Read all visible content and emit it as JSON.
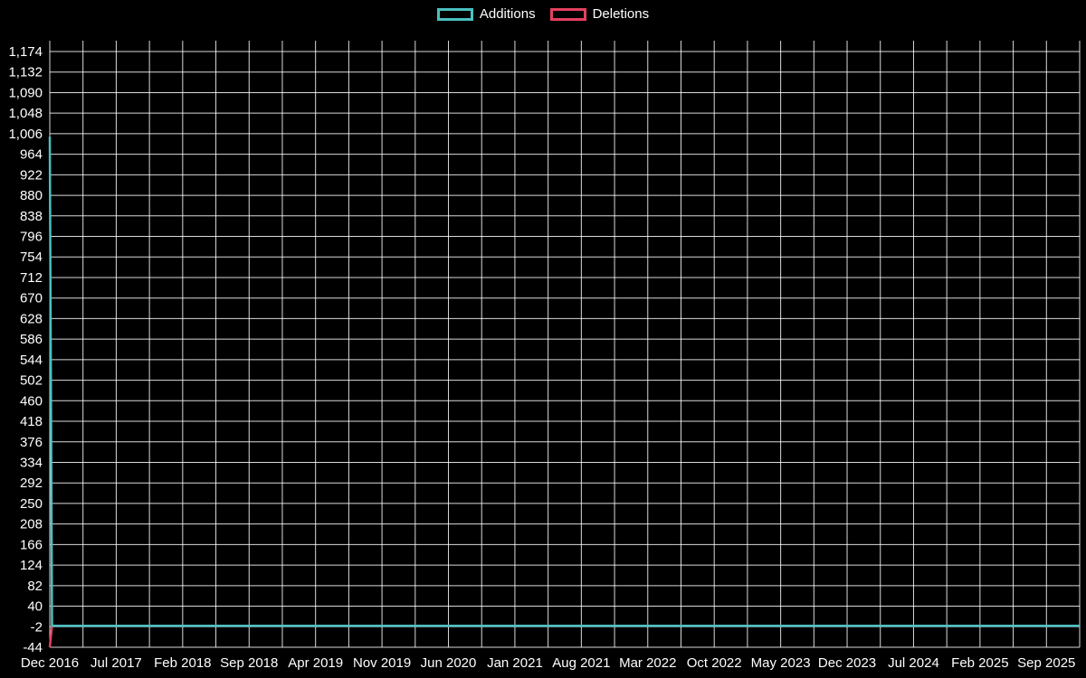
{
  "page": {
    "background": "#000000",
    "text_color": "#ffffff"
  },
  "legend": {
    "position": "top-center",
    "items": [
      {
        "label": "Additions",
        "color": "#4bc0c0"
      },
      {
        "label": "Deletions",
        "color": "#e5405f"
      }
    ]
  },
  "chart_data": {
    "type": "line",
    "title": "",
    "xlabel": "",
    "ylabel": "",
    "grid": true,
    "legend_position": "top",
    "x_tick_labels": [
      "Dec 2016",
      "Jul 2017",
      "Feb 2018",
      "Sep 2018",
      "Apr 2019",
      "Nov 2019",
      "Jun 2020",
      "Jan 2021",
      "Aug 2021",
      "Mar 2022",
      "Oct 2022",
      "May 2023",
      "Dec 2023",
      "Jul 2024",
      "Feb 2025",
      "Sep 2025"
    ],
    "y_tick_labels": [
      "1,174",
      "1,132",
      "1,090",
      "1,048",
      "1,006",
      "964",
      "922",
      "880",
      "838",
      "796",
      "754",
      "712",
      "670",
      "628",
      "586",
      "544",
      "502",
      "460",
      "418",
      "376",
      "334",
      "292",
      "250",
      "208",
      "166",
      "124",
      "82",
      "40",
      "-2",
      "-44"
    ],
    "ylim": [
      -44,
      1174
    ],
    "xlim_weeks": [
      0,
      459
    ],
    "x_gridlines": 32,
    "series": [
      {
        "name": "Deletions",
        "color": "#e5405f",
        "points": [
          [
            0,
            -44
          ],
          [
            1,
            0
          ],
          [
            459,
            0
          ]
        ]
      },
      {
        "name": "Additions",
        "color": "#4bc0c0",
        "points": [
          [
            0,
            1000
          ],
          [
            1,
            0
          ],
          [
            459,
            0
          ]
        ]
      }
    ],
    "colors": {
      "grid": "rgba(255,255,255,0.85)",
      "text": "#ffffff",
      "background": "#000000"
    }
  }
}
